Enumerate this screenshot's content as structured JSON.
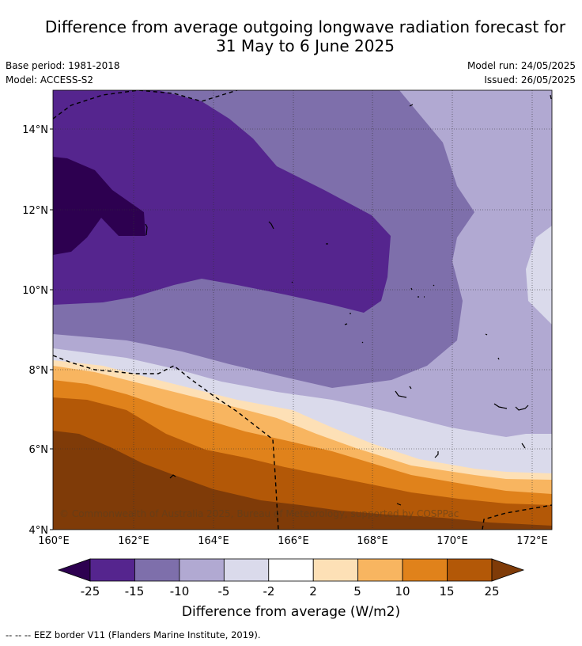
{
  "title": {
    "line1": "Difference from average outgoing longwave radiation forecast for",
    "line2": "31 May to 6 June 2025"
  },
  "meta": {
    "base_period": "Base period: 1981-2018",
    "model": "Model: ACCESS-S2",
    "model_run": "Model run: 24/05/2025",
    "issued": "Issued: 26/05/2025"
  },
  "map": {
    "lon_labels": [
      "160°E",
      "162°E",
      "164°E",
      "166°E",
      "168°E",
      "170°E",
      "172°E"
    ],
    "lat_labels": [
      "14°N",
      "12°N",
      "10°N",
      "8°N",
      "6°N",
      "4°N"
    ],
    "copyright": "© Commonwealth of Australia 2025, Bureau of Meteorology, supported by COSPPac"
  },
  "colorbar": {
    "labels": [
      "-25",
      "-15",
      "-10",
      "-5",
      "-2",
      "2",
      "5",
      "10",
      "15",
      "25"
    ],
    "colors": [
      "#2d0050",
      "#55258e",
      "#7e6fab",
      "#b1a9d2",
      "#dadaeb",
      "#ffffff",
      "#fde0b6",
      "#f8b560",
      "#e0821b",
      "#b35807",
      "#7f3b08"
    ],
    "axis_label": "Difference from average (W/m2)"
  },
  "footer": {
    "eez_legend": "-- -- -- EEZ border V11 (Flanders Marine Institute, 2019)."
  }
}
